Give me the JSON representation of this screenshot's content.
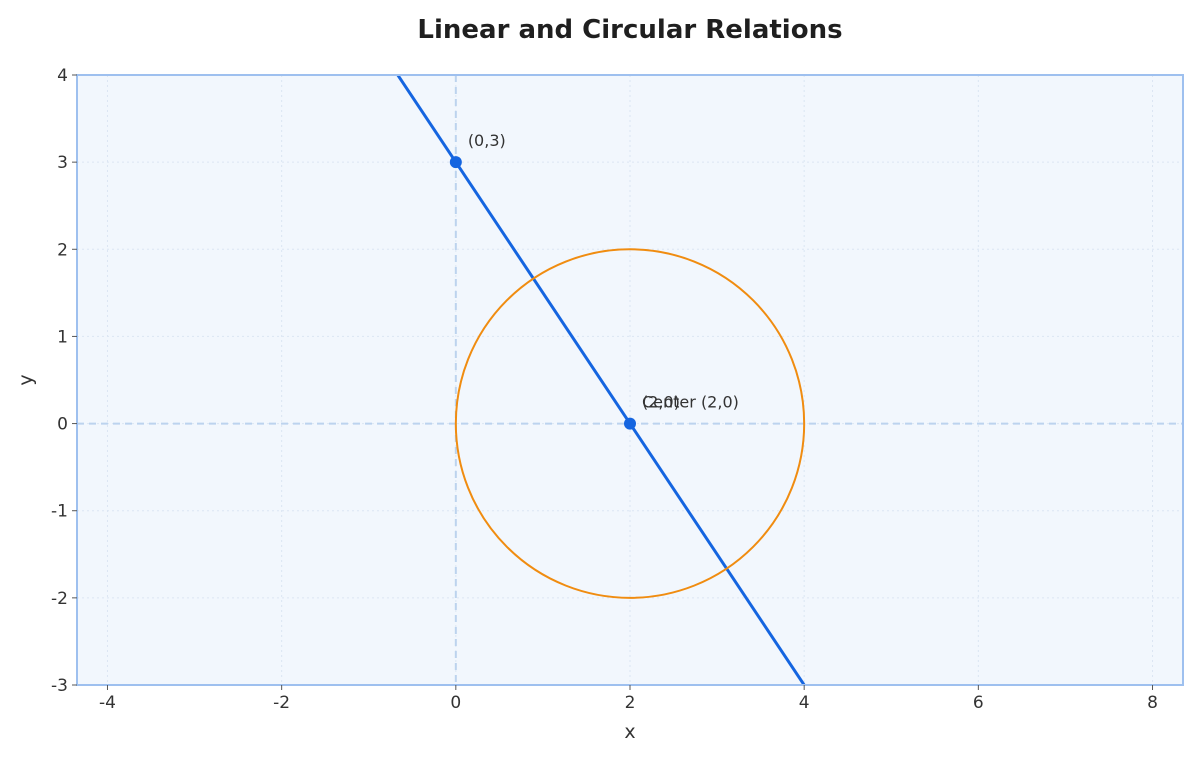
{
  "chart_data": {
    "type": "line",
    "title": "Linear and Circular Relations",
    "xlabel": "x",
    "ylabel": "y",
    "xlim": [
      -4.35,
      8.35
    ],
    "ylim": [
      -3,
      4
    ],
    "x_ticks": [
      -4,
      -2,
      0,
      2,
      4,
      6,
      8
    ],
    "y_ticks": [
      -3,
      -2,
      -1,
      0,
      1,
      2,
      3,
      4
    ],
    "x_tick_labels": [
      "-4",
      "-2",
      "0",
      "2",
      "4",
      "6",
      "8"
    ],
    "y_tick_labels": [
      "-3",
      "-2",
      "-1",
      "0",
      "1",
      "2",
      "3",
      "4"
    ],
    "grid": true,
    "reference_lines": {
      "x": 0,
      "y": 0
    },
    "series": [
      {
        "type": "line",
        "x": [
          -1,
          4.4
        ],
        "y": [
          4.5,
          -3.6
        ],
        "color": "#1565e0"
      },
      {
        "type": "circle",
        "center": [
          2,
          0
        ],
        "radius": 2,
        "color": "#f08c10"
      }
    ],
    "points": [
      {
        "x": 0,
        "y": 3,
        "label": "(0,3)",
        "color": "#1565e0"
      },
      {
        "x": 2,
        "y": 0,
        "label": "(2,0)",
        "color": "#1565e0"
      }
    ],
    "annotations": [
      {
        "x": 2,
        "y": 0,
        "text": "Center (2,0)"
      }
    ],
    "colors": {
      "plot_background": "#f2f7fd",
      "frame": "#9ec0ef",
      "grid": "#dbe6f3",
      "reference": "#bcd3ee"
    }
  }
}
